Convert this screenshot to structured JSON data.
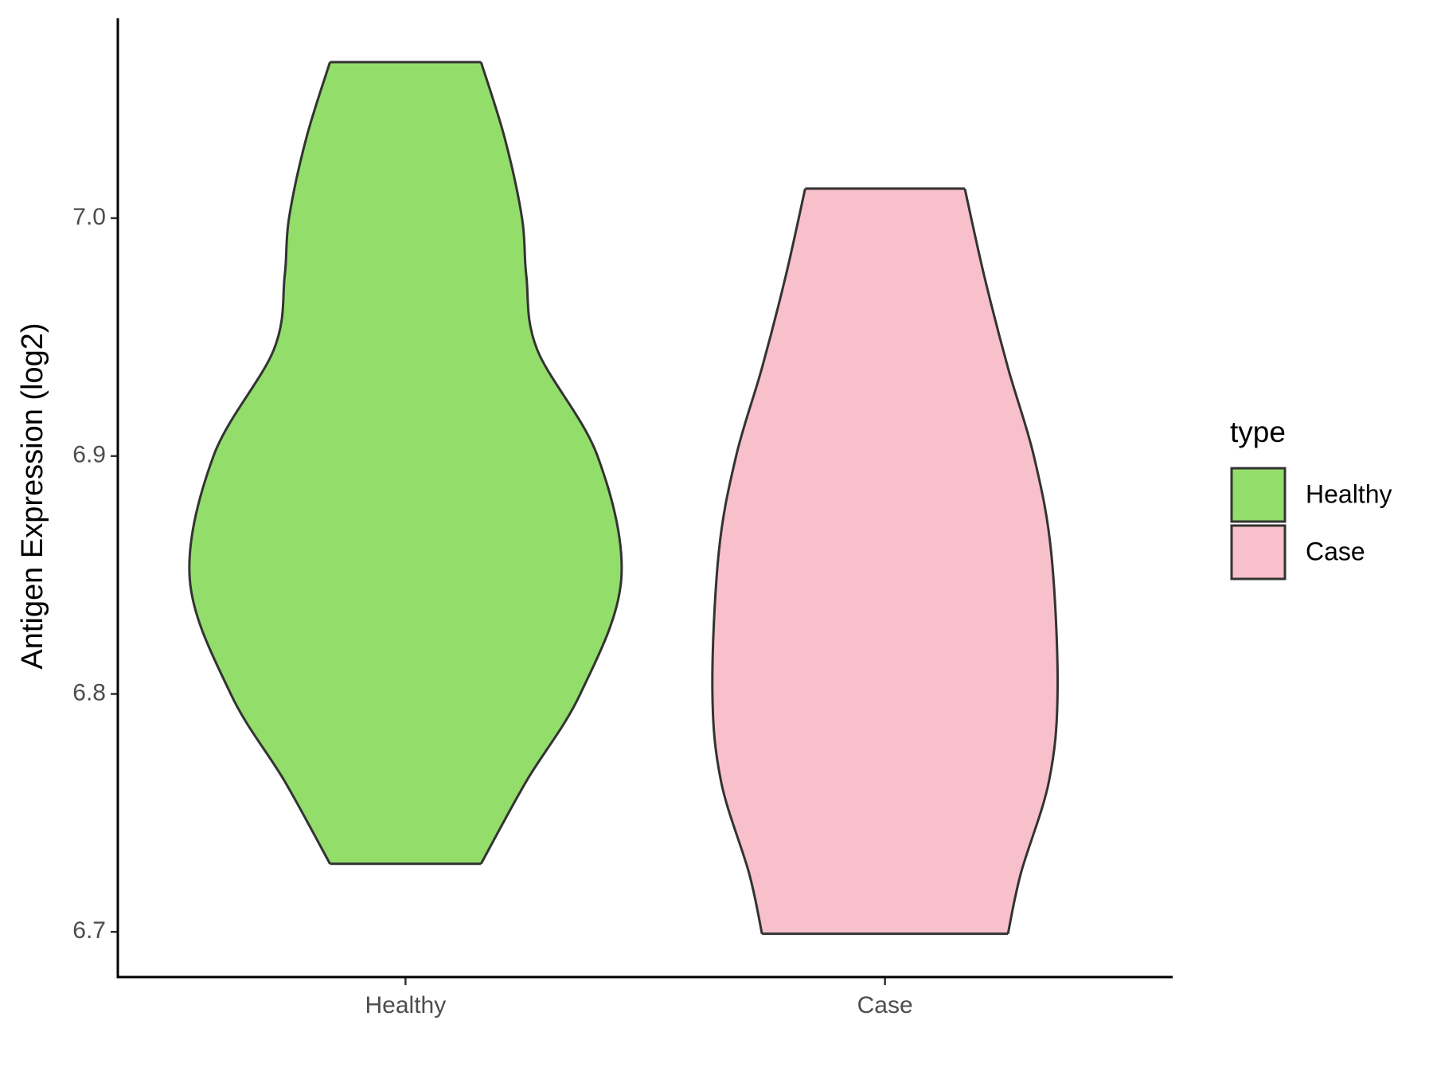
{
  "chart_data": {
    "type": "violin",
    "y_label": "Antigen Expression (log2)",
    "categories": [
      "Healthy",
      "Case"
    ],
    "legend_title": "type",
    "legend_position": "right",
    "ylim": [
      6.681,
      7.084
    ],
    "yticks": [
      {
        "value": 6.7,
        "label": "6.7"
      },
      {
        "value": 6.8,
        "label": "6.8"
      },
      {
        "value": 6.9,
        "label": "6.9"
      },
      {
        "value": 7.0,
        "label": "7.0"
      }
    ],
    "grid": false,
    "series": [
      {
        "name": "Healthy",
        "color": "#93dd6b",
        "y": [
          7.0656,
          7.0336,
          7.0,
          6.9757,
          6.9448,
          6.9,
          6.8483,
          6.8,
          6.7633,
          6.7286
        ],
        "density": [
          0.35,
          0.46,
          0.54,
          0.56,
          0.61,
          0.89,
          1.0,
          0.81,
          0.56,
          0.35
        ]
      },
      {
        "name": "Case",
        "color": "#f7c0cb",
        "y": [
          7.0124,
          6.9757,
          6.9371,
          6.9,
          6.8598,
          6.8019,
          6.7633,
          6.7247,
          6.6992
        ],
        "density": [
          0.37,
          0.46,
          0.57,
          0.69,
          0.77,
          0.8,
          0.76,
          0.63,
          0.57
        ]
      }
    ]
  }
}
